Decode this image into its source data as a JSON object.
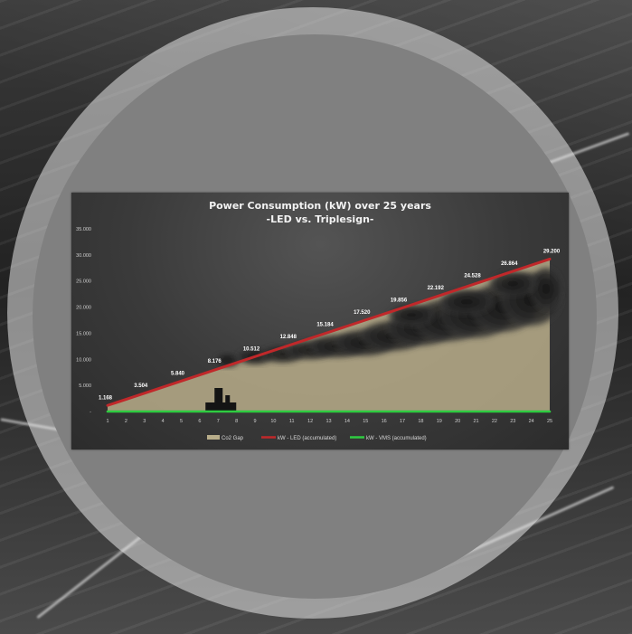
{
  "chart_data": {
    "type": "line",
    "title": "Power Consumption (kW) over 25 years",
    "subtitle": "-LED vs. Triplesign-",
    "x": [
      1,
      2,
      3,
      4,
      5,
      6,
      7,
      8,
      9,
      10,
      11,
      12,
      13,
      14,
      15,
      16,
      17,
      18,
      19,
      20,
      21,
      22,
      23,
      24,
      25
    ],
    "ylim": [
      0,
      35000
    ],
    "y_ticks": [
      "-",
      "5.000",
      "10.000",
      "15.000",
      "20.000",
      "25.000",
      "30.000",
      "35.000"
    ],
    "y_tick_values": [
      0,
      5000,
      10000,
      15000,
      20000,
      25000,
      30000,
      35000
    ],
    "series": [
      {
        "name": "kW - LED (accumulated)",
        "color": "#c0282a",
        "values": [
          1168,
          2336,
          3504,
          4672,
          5840,
          7008,
          8176,
          9344,
          10512,
          11680,
          12848,
          14016,
          15184,
          16352,
          17520,
          18688,
          19856,
          21024,
          22192,
          23360,
          24528,
          25696,
          26864,
          28032,
          29200
        ]
      },
      {
        "name": "kW - VMS (accumulated)",
        "color": "#2ecc40",
        "values": [
          0,
          0,
          0,
          0,
          0,
          0,
          0,
          0,
          0,
          0,
          0,
          0,
          0,
          0,
          0,
          0,
          0,
          0,
          0,
          0,
          0,
          0,
          0,
          0,
          0
        ]
      }
    ],
    "area_series": {
      "name": "Co2 Gap",
      "color": "#b8ad8a"
    },
    "data_labels": [
      {
        "x": 1,
        "text": "1.168"
      },
      {
        "x": 3,
        "text": "3.504"
      },
      {
        "x": 5,
        "text": "5.840"
      },
      {
        "x": 7,
        "text": "8.176"
      },
      {
        "x": 9,
        "text": "10.512"
      },
      {
        "x": 11,
        "text": "12.848"
      },
      {
        "x": 13,
        "text": "15.184"
      },
      {
        "x": 15,
        "text": "17.520"
      },
      {
        "x": 17,
        "text": "19.856"
      },
      {
        "x": 19,
        "text": "22.192"
      },
      {
        "x": 21,
        "text": "24.528"
      },
      {
        "x": 23,
        "text": "26.864"
      },
      {
        "x": 25,
        "text": "29.200"
      }
    ],
    "legend_position": "bottom",
    "grid": false,
    "colors": {
      "panel": "#3a3a3a",
      "smoke": "#1e1e1e",
      "factory": "#141414"
    }
  }
}
